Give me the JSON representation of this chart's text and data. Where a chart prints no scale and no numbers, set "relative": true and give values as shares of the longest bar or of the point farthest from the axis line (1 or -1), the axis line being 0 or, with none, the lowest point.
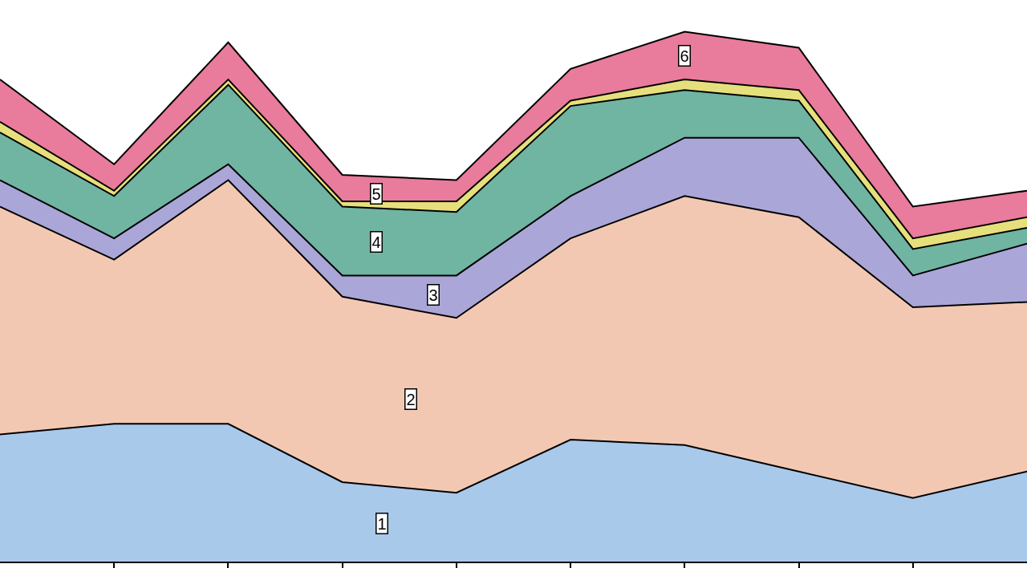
{
  "chart_data": {
    "type": "area",
    "stacked": true,
    "relative": true,
    "categories": [
      null,
      null,
      null,
      null,
      null,
      null,
      null,
      null,
      null,
      null
    ],
    "series": [
      {
        "name": "1",
        "color": "#a9c9ea",
        "values": [
          0.24,
          0.26,
          0.26,
          0.15,
          0.13,
          0.23,
          0.22,
          0.17,
          0.12,
          0.17
        ]
      },
      {
        "name": "2",
        "color": "#f3c8b2",
        "values": [
          0.43,
          0.31,
          0.46,
          0.35,
          0.33,
          0.38,
          0.47,
          0.48,
          0.36,
          0.32
        ]
      },
      {
        "name": "3",
        "color": "#aaa6d8",
        "values": [
          0.05,
          0.04,
          0.03,
          0.04,
          0.08,
          0.08,
          0.11,
          0.15,
          0.06,
          0.11
        ]
      },
      {
        "name": "4",
        "color": "#70b4a2",
        "values": [
          0.09,
          0.08,
          0.15,
          0.13,
          0.12,
          0.17,
          0.09,
          0.07,
          0.05,
          0.03
        ]
      },
      {
        "name": "5",
        "color": "#e6e07c",
        "values": [
          0.02,
          0.01,
          0.01,
          0.01,
          0.02,
          0.01,
          0.02,
          0.02,
          0.02,
          0.02
        ]
      },
      {
        "name": "6",
        "color": "#e97b9c",
        "values": [
          0.08,
          0.05,
          0.07,
          0.05,
          0.04,
          0.06,
          0.09,
          0.08,
          0.06,
          0.05
        ]
      }
    ]
  }
}
